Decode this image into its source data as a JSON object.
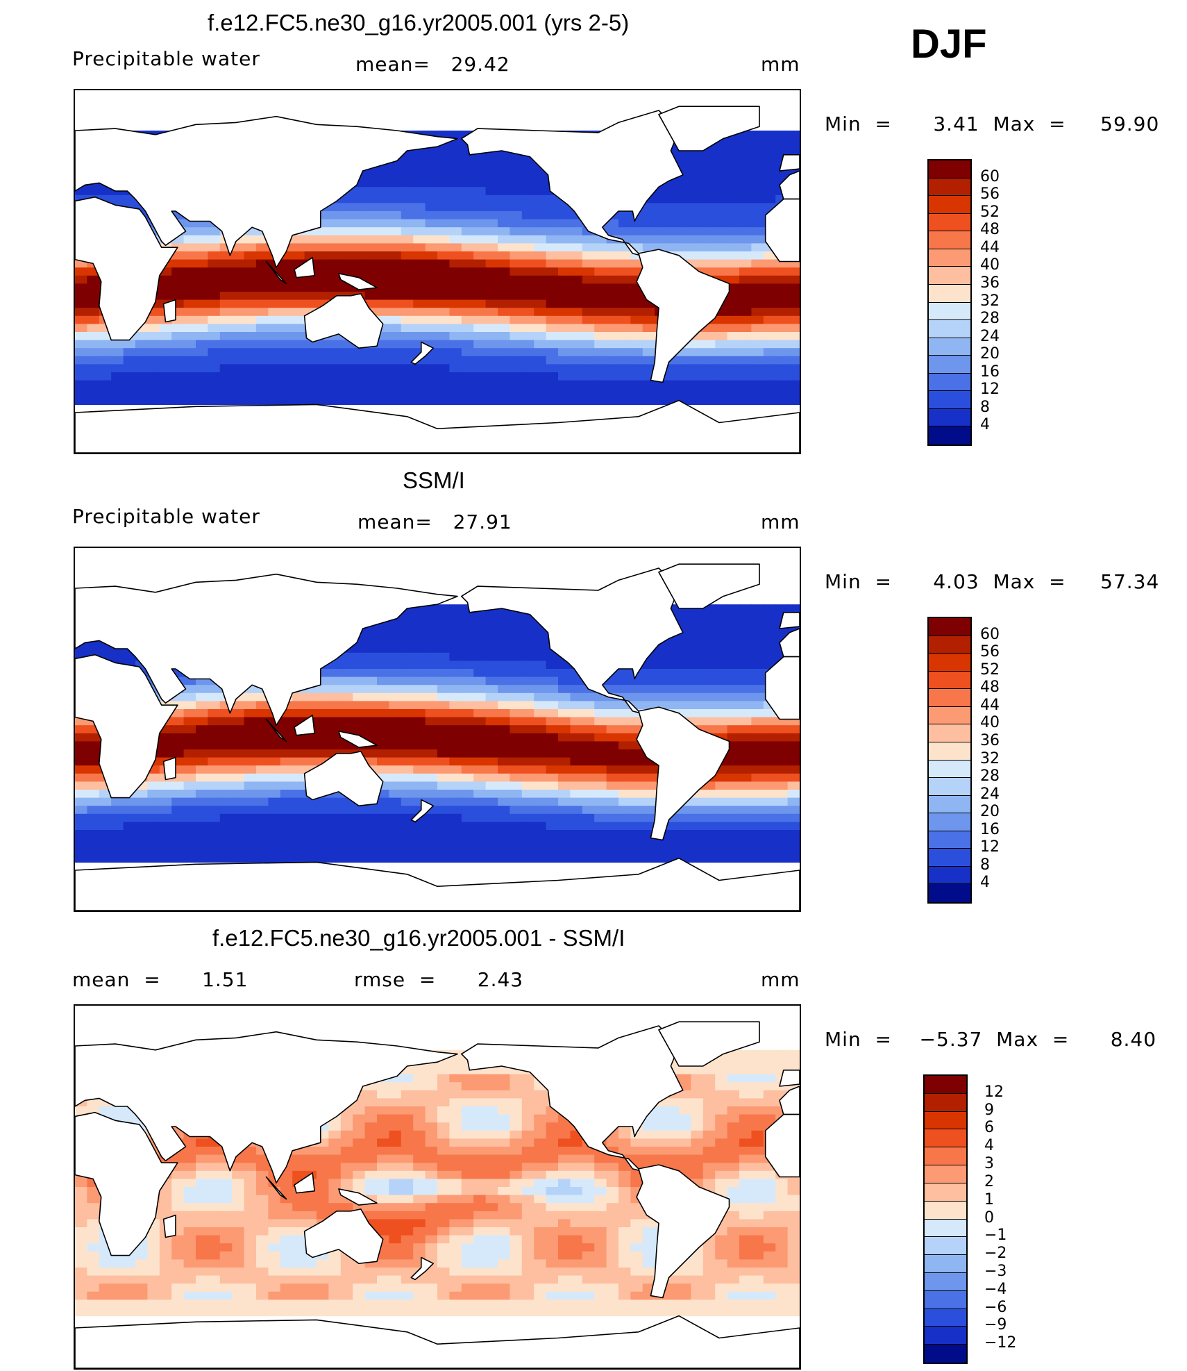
{
  "header": {
    "season": "DJF"
  },
  "panels": [
    {
      "title": "f.e12.FC5.ne30_g16.yr2005.001 (yrs 2-5)",
      "variable": "Precipitable water",
      "stat_text": "mean=   29.42",
      "units": "mm",
      "minmax": "Min  =      3.41  Max  =     59.90",
      "colorbar": {
        "labels": [
          "60",
          "56",
          "52",
          "48",
          "44",
          "40",
          "36",
          "32",
          "28",
          "24",
          "20",
          "16",
          "12",
          "8",
          "4"
        ],
        "colors": [
          "#7f0000",
          "#b22000",
          "#d83500",
          "#ef5020",
          "#f7774a",
          "#fb9a73",
          "#fdbf9f",
          "#fde3cc",
          "#d6e9fb",
          "#b5d3f8",
          "#8fb6f2",
          "#6d96ec",
          "#4a72e6",
          "#2b4fdd",
          "#1630c8",
          "#000c8a"
        ]
      },
      "field": "model"
    },
    {
      "title": "SSM/I",
      "variable": "Precipitable water",
      "stat_text": "mean=   27.91",
      "units": "mm",
      "minmax": "Min  =      4.03  Max  =     57.34",
      "colorbar": {
        "labels": [
          "60",
          "56",
          "52",
          "48",
          "44",
          "40",
          "36",
          "32",
          "28",
          "24",
          "20",
          "16",
          "12",
          "8",
          "4"
        ],
        "colors": [
          "#7f0000",
          "#b22000",
          "#d83500",
          "#ef5020",
          "#f7774a",
          "#fb9a73",
          "#fdbf9f",
          "#fde3cc",
          "#d6e9fb",
          "#b5d3f8",
          "#8fb6f2",
          "#6d96ec",
          "#4a72e6",
          "#2b4fdd",
          "#1630c8",
          "#000c8a"
        ]
      },
      "field": "obs"
    },
    {
      "title": "f.e12.FC5.ne30_g16.yr2005.001 - SSM/I",
      "mean_text": "mean  =      1.51",
      "rmse_text": "rmse  =      2.43",
      "units": "mm",
      "minmax": "Min  =    −5.37  Max  =      8.40",
      "colorbar": {
        "labels": [
          "12",
          "9",
          "6",
          "4",
          "3",
          "2",
          "1",
          "0",
          "−1",
          "−2",
          "−3",
          "−4",
          "−6",
          "−9",
          "−12"
        ],
        "colors": [
          "#7f0000",
          "#b22000",
          "#d83500",
          "#ef5020",
          "#f7774a",
          "#fb9a73",
          "#fdbf9f",
          "#fde3cc",
          "#d6e9fb",
          "#b5d3f8",
          "#8fb6f2",
          "#6d96ec",
          "#4a72e6",
          "#2b4fdd",
          "#1630c8",
          "#000c8a"
        ]
      },
      "field": "diff"
    }
  ]
}
